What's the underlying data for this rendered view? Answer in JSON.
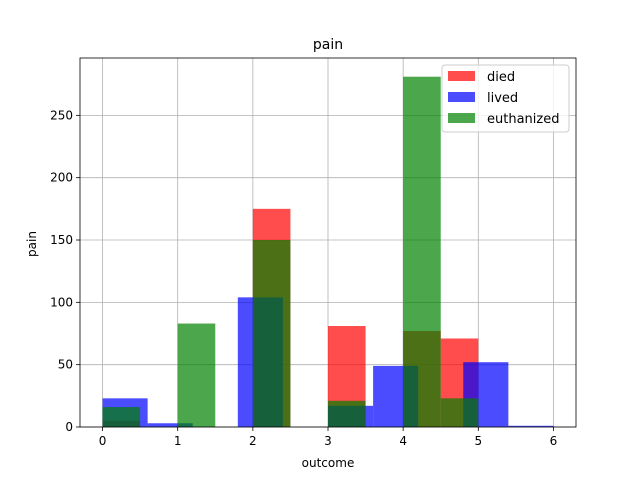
{
  "chart_data": {
    "type": "bar",
    "title": "pain",
    "xlabel": "outcome",
    "ylabel": "pain",
    "xlim": [
      -0.3,
      6.3
    ],
    "ylim": [
      0,
      296
    ],
    "xticks": [
      0,
      1,
      2,
      3,
      4,
      5,
      6
    ],
    "yticks": [
      0,
      50,
      100,
      150,
      200,
      250
    ],
    "grid": true,
    "legend_position": "top-right",
    "series": [
      {
        "name": "died",
        "color": "#ff0000",
        "alpha": 0.7,
        "bars": [
          {
            "x0": 0.0,
            "x1": 0.5,
            "value": 5
          },
          {
            "x0": 2.0,
            "x1": 2.5,
            "value": 175
          },
          {
            "x0": 3.0,
            "x1": 3.5,
            "value": 81
          },
          {
            "x0": 4.0,
            "x1": 4.5,
            "value": 77
          },
          {
            "x0": 4.5,
            "x1": 5.0,
            "value": 71
          }
        ]
      },
      {
        "name": "lived",
        "color": "#0000ff",
        "alpha": 0.7,
        "bars": [
          {
            "x0": 0.0,
            "x1": 0.6,
            "value": 23
          },
          {
            "x0": 0.6,
            "x1": 1.2,
            "value": 3
          },
          {
            "x0": 1.8,
            "x1": 2.4,
            "value": 104
          },
          {
            "x0": 3.0,
            "x1": 3.6,
            "value": 17
          },
          {
            "x0": 3.6,
            "x1": 4.2,
            "value": 49
          },
          {
            "x0": 4.8,
            "x1": 5.4,
            "value": 52
          },
          {
            "x0": 5.4,
            "x1": 6.0,
            "value": 1
          }
        ]
      },
      {
        "name": "euthanized",
        "color": "#008000",
        "alpha": 0.7,
        "bars": [
          {
            "x0": 0.0,
            "x1": 0.5,
            "value": 16
          },
          {
            "x0": 1.0,
            "x1": 1.5,
            "value": 83
          },
          {
            "x0": 2.0,
            "x1": 2.5,
            "value": 150
          },
          {
            "x0": 3.0,
            "x1": 3.5,
            "value": 21
          },
          {
            "x0": 4.0,
            "x1": 4.5,
            "value": 281
          },
          {
            "x0": 4.5,
            "x1": 5.0,
            "value": 23
          }
        ]
      }
    ]
  }
}
